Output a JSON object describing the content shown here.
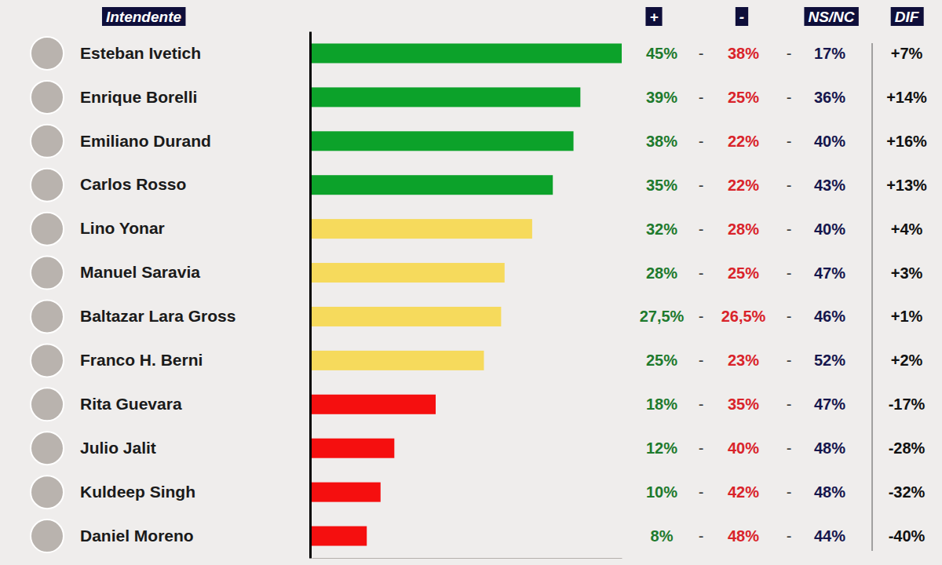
{
  "chart_data": {
    "type": "bar",
    "orientation": "horizontal",
    "header": "Intendente",
    "value_name": "+",
    "separator": "-",
    "categories": [
      "Esteban Ivetich",
      "Enrique Borelli",
      "Emiliano Durand",
      "Carlos Rosso",
      "Lino Yonar",
      "Manuel Saravia",
      "Baltazar Lara Gross",
      "Franco H. Berni",
      "Rita Guevara",
      "Julio Jalit",
      "Kuldeep Singh",
      "Daniel Moreno"
    ],
    "values": [
      45,
      39,
      38,
      35,
      32,
      28,
      27.5,
      25,
      18,
      12,
      10,
      8
    ],
    "value_labels": [
      "45%",
      "39%",
      "38%",
      "35%",
      "32%",
      "28%",
      "27,5%",
      "25%",
      "18%",
      "12%",
      "10%",
      "8%"
    ],
    "colors": [
      "#0ca22a",
      "#0ca22a",
      "#0ca22a",
      "#0ca22a",
      "#f6da5c",
      "#f6da5c",
      "#f6da5c",
      "#f6da5c",
      "#f50f0f",
      "#f50f0f",
      "#f50f0f",
      "#f50f0f"
    ],
    "columns": [
      {
        "name": "-",
        "values": [
          38,
          25,
          22,
          22,
          28,
          25,
          26.5,
          23,
          35,
          40,
          42,
          48
        ],
        "value_labels": [
          "38%",
          "25%",
          "22%",
          "22%",
          "28%",
          "25%",
          "26,5%",
          "23%",
          "35%",
          "40%",
          "42%",
          "48%"
        ]
      },
      {
        "name": "NS/NC",
        "values": [
          17,
          36,
          40,
          43,
          40,
          47,
          46,
          52,
          47,
          48,
          48,
          44
        ],
        "value_labels": [
          "17%",
          "36%",
          "40%",
          "43%",
          "40%",
          "47%",
          "46%",
          "52%",
          "47%",
          "48%",
          "48%",
          "44%"
        ]
      },
      {
        "name": "DIF",
        "values": [
          7,
          14,
          16,
          13,
          4,
          3,
          1,
          2,
          -17,
          -28,
          -32,
          -40
        ],
        "value_labels": [
          "+7%",
          "+14%",
          "+16%",
          "+13%",
          "+4%",
          "+3%",
          "+1%",
          "+2%",
          "-17%",
          "-28%",
          "-32%",
          "-40%"
        ]
      }
    ],
    "xlim": [
      0,
      45
    ],
    "tick_labels": false,
    "data_labels": true
  }
}
